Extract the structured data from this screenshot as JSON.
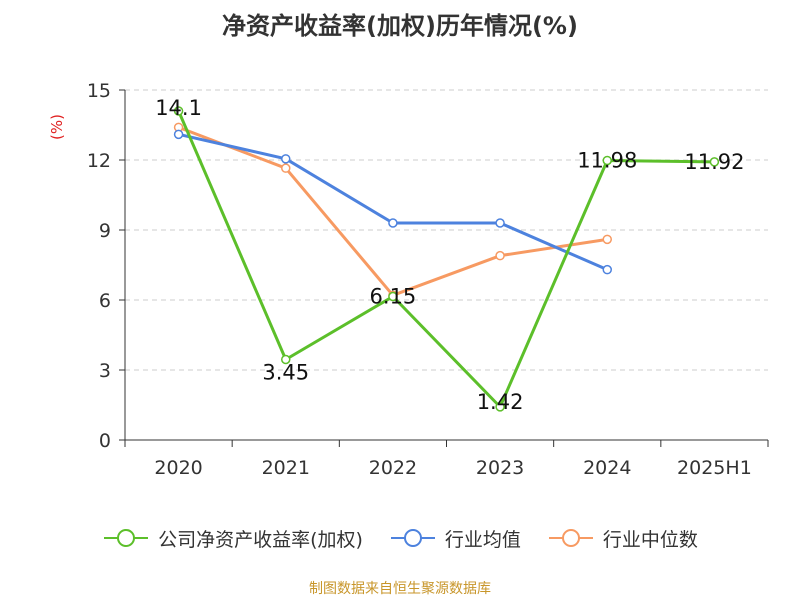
{
  "title": "净资产收益率(加权)历年情况(%)",
  "source": "制图数据来自恒生聚源数据库",
  "chart_data": {
    "type": "line",
    "categories": [
      "2020",
      "2021",
      "2022",
      "2023",
      "2024",
      "2025H1"
    ],
    "ylabel": "(%)",
    "ylim": [
      0,
      15
    ],
    "yticks": [
      0,
      3,
      6,
      9,
      12,
      15
    ],
    "grid": true,
    "legend_position": "bottom",
    "series": [
      {
        "name": "公司净资产收益率(加权)",
        "color": "#5cbf2a",
        "values": [
          14.1,
          3.45,
          6.15,
          1.42,
          11.98,
          11.92
        ],
        "labels": [
          "14.1",
          "3.45",
          "6.15",
          "1.42",
          "11.98",
          "11.92"
        ]
      },
      {
        "name": "行业均值",
        "color": "#4d82de",
        "values": [
          13.1,
          12.05,
          9.3,
          9.3,
          7.3,
          null
        ],
        "labels": []
      },
      {
        "name": "行业中位数",
        "color": "#f79a62",
        "values": [
          13.4,
          11.65,
          6.2,
          7.9,
          8.6,
          null
        ],
        "labels": []
      }
    ]
  }
}
